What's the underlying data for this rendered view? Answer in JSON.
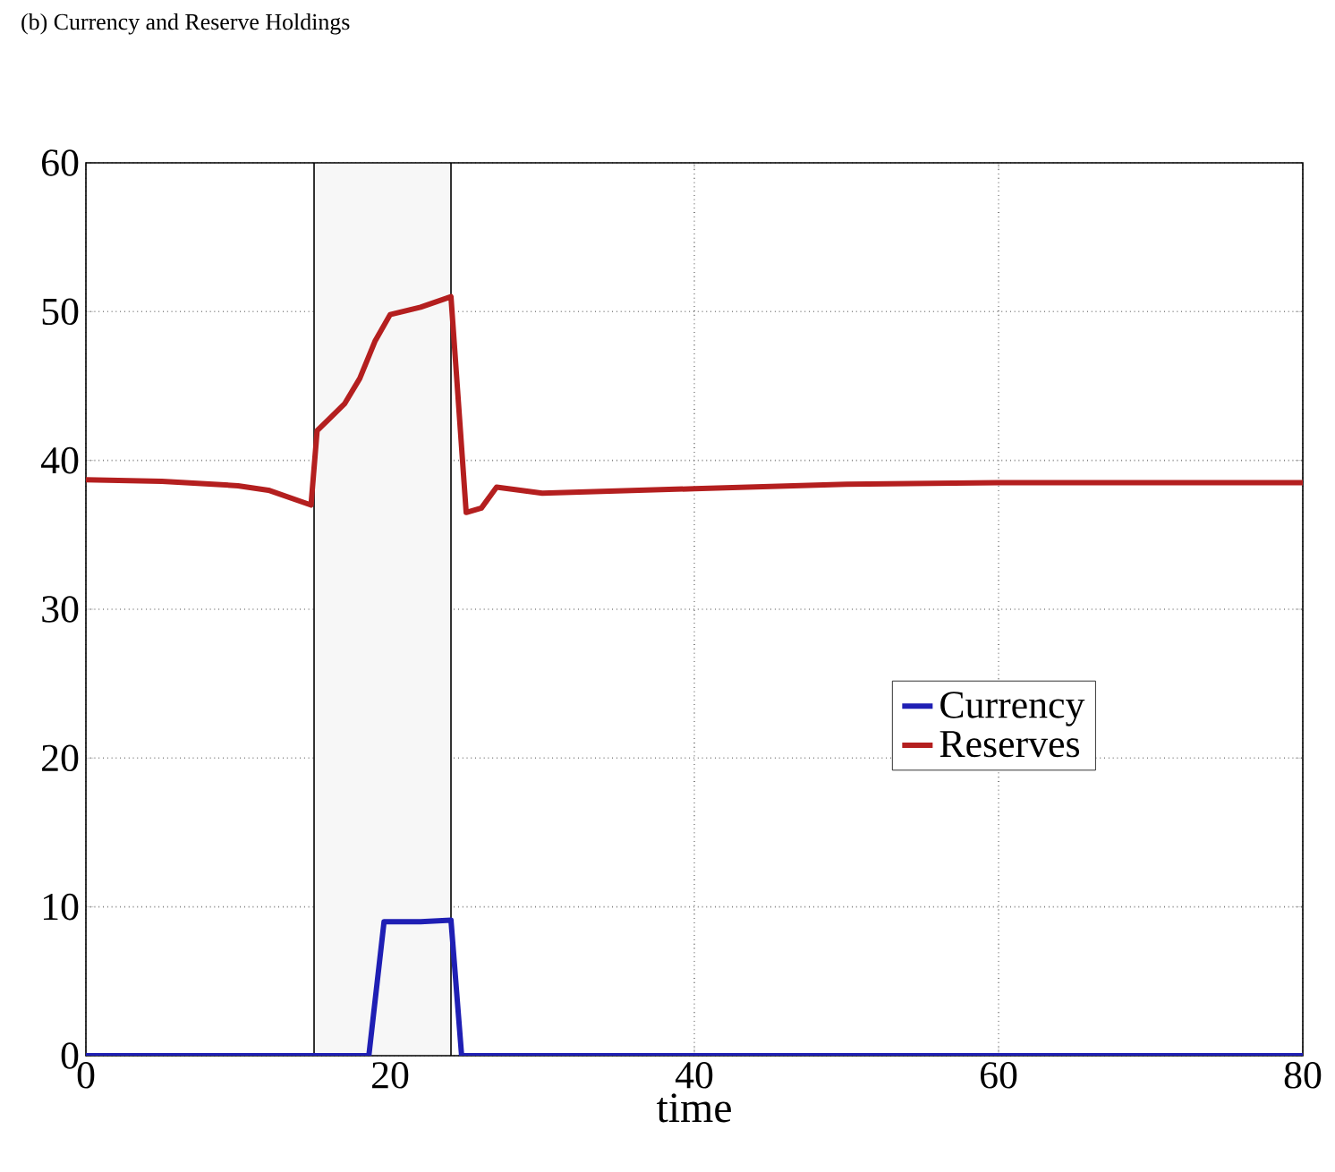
{
  "chart_data": {
    "type": "line",
    "title": "(b) Currency and Reserve Holdings",
    "xlabel": "time",
    "xlim": [
      0,
      80
    ],
    "ylim": [
      0,
      60
    ],
    "xticks": [
      0,
      20,
      40,
      60,
      80
    ],
    "yticks": [
      0,
      10,
      20,
      30,
      40,
      50,
      60
    ],
    "grid": true,
    "legend": "right",
    "marker": "none",
    "line_style": "solid",
    "bands": [
      {
        "axis": "x",
        "from": 15,
        "to": 24,
        "color": "#f7f7f7"
      }
    ],
    "series": [
      {
        "name": "Currency",
        "color": "#1f1fb4",
        "x": [
          0,
          18.6,
          19.6,
          22,
          24,
          24.7,
          80
        ],
        "values": [
          0,
          0,
          9.0,
          9.0,
          9.1,
          0,
          0
        ]
      },
      {
        "name": "Reserves",
        "color": "#b41f1f",
        "x": [
          0,
          5,
          10,
          12,
          14.8,
          15.2,
          16,
          17,
          18,
          19,
          20,
          22,
          24,
          25,
          26,
          27,
          30,
          40,
          50,
          60,
          80
        ],
        "values": [
          38.7,
          38.6,
          38.3,
          38.0,
          37.0,
          42.0,
          42.8,
          43.8,
          45.5,
          48.0,
          49.8,
          50.3,
          51.0,
          36.5,
          36.8,
          38.2,
          37.8,
          38.1,
          38.4,
          38.5,
          38.5
        ]
      }
    ]
  }
}
